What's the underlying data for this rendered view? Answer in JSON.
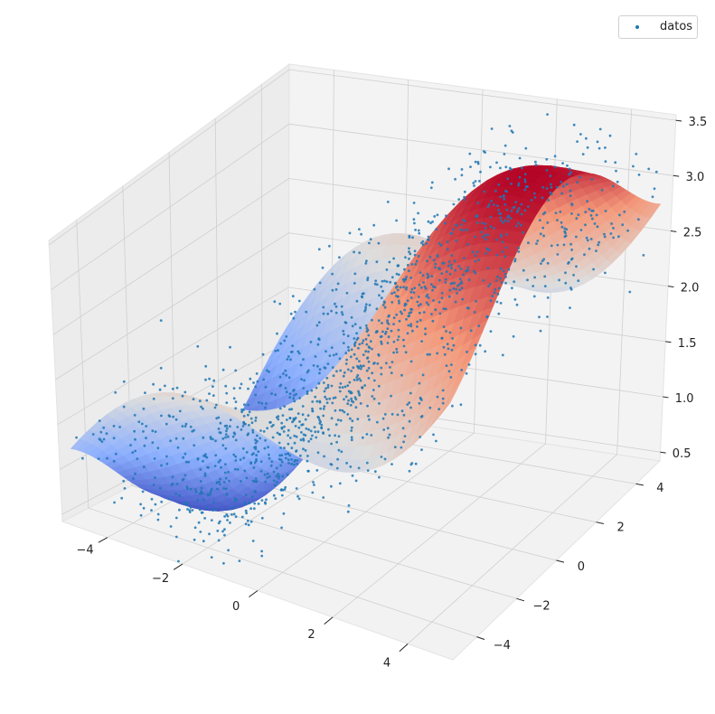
{
  "chart_data": {
    "type": "surface3d",
    "title": "",
    "xlabel": "",
    "ylabel": "",
    "zlabel": "",
    "xlim": [
      -5.2,
      5.2
    ],
    "ylim": [
      -5.2,
      5.2
    ],
    "zlim": [
      0.42,
      3.55
    ],
    "x_ticks": [
      "−4",
      "−2",
      "0",
      "2",
      "4"
    ],
    "y_ticks": [
      "−4",
      "−2",
      "0",
      "2",
      "4"
    ],
    "z_ticks": [
      "0.5",
      "1.0",
      "1.5",
      "2.0",
      "2.5",
      "3.0",
      "3.5"
    ],
    "surface": {
      "function": "2 + sin(0.5*x) * cos(0.5*y) + 0.25*x",
      "x_range": [
        -5,
        5
      ],
      "y_range": [
        -5,
        5
      ],
      "colormap": "coolwarm"
    },
    "series": [
      {
        "name": "datos",
        "kind": "scatter",
        "count": 1500,
        "noise_sd": 0.25,
        "color": "#1f77b4"
      }
    ],
    "legend": {
      "position": "top-right"
    },
    "grid": true,
    "colors": {
      "pane": "#f2f2f2",
      "pane_side": "#ececec",
      "grid": "#cfcfcf",
      "points": "#1f77b4"
    }
  }
}
